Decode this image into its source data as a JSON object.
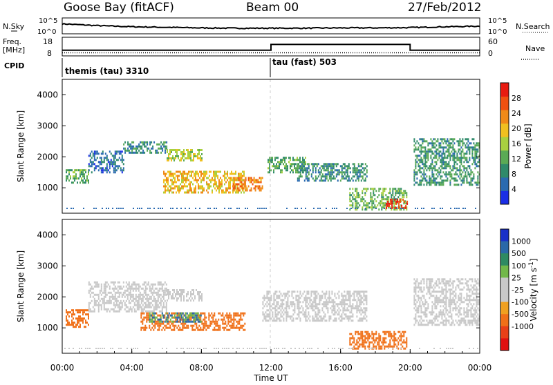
{
  "header": {
    "station": "Goose Bay (fitACF)",
    "beam": "Beam 00",
    "date": "27/Feb/2012"
  },
  "colors": {
    "power_scale": [
      "#1a2ee6",
      "#2a6ab0",
      "#2f8a6a",
      "#5aaa55",
      "#a8d040",
      "#f0c020",
      "#f08a18",
      "#f05010",
      "#e81a10"
    ],
    "velocity_scale": [
      "#1a30c8",
      "#2a68a8",
      "#2e8a62",
      "#72b84a",
      "#c8c8c8",
      "#c8c8c8",
      "#f0a020",
      "#f07018",
      "#e84018",
      "#e01010"
    ],
    "trace": "#000000",
    "mode_divider": "#000000",
    "gridline": "#cccccc"
  },
  "chart_data": [
    {
      "type": "line",
      "panel": "nsky-nsearch",
      "left_label": "N.Sky",
      "right_label": "N.Search",
      "left_ticks": [
        "10^5",
        "10^0"
      ],
      "right_ticks": [
        "10^5",
        "10^0"
      ],
      "x": [
        "00:00",
        "02:00",
        "04:00",
        "06:00",
        "08:00",
        "10:00",
        "12:00",
        "14:00",
        "16:00",
        "18:00",
        "20:00",
        "22:00",
        "24:00"
      ],
      "series": [
        {
          "name": "N.Sky",
          "values": [
            3.2,
            2.6,
            2.2,
            2.0,
            1.8,
            1.7,
            1.7,
            1.7,
            1.8,
            1.8,
            1.9,
            2.2,
            2.4
          ]
        }
      ]
    },
    {
      "type": "line",
      "panel": "freq-nave",
      "left_label": "Freq.",
      "left_unit": "[MHz]",
      "right_label": "Nave",
      "left_ticks": [
        "18",
        "8"
      ],
      "right_ticks": [
        "60",
        "0"
      ],
      "ylim_left": [
        8,
        18
      ],
      "ylim_right": [
        0,
        60
      ],
      "series": [
        {
          "name": "Freq.",
          "x": [
            "00:00",
            "12:00",
            "12:00",
            "20:00",
            "20:00",
            "24:00"
          ],
          "values": [
            10.8,
            10.8,
            14.0,
            14.0,
            10.8,
            10.8
          ]
        },
        {
          "name": "Nave",
          "x": [
            "00:00",
            "12:00",
            "24:00"
          ],
          "values": [
            8,
            8,
            8
          ]
        }
      ]
    },
    {
      "type": "table",
      "panel": "cpid",
      "label": "CPID",
      "modes": [
        {
          "name": "themis (tau) 3310",
          "start": "00:00"
        },
        {
          "name": "tau (fast) 503",
          "start": "12:00"
        }
      ]
    },
    {
      "type": "heatmap",
      "panel": "power",
      "ylabel": "Slant Range [km]",
      "yticks": [
        1000,
        2000,
        3000,
        4000
      ],
      "ylim": [
        180,
        4500
      ],
      "xlim": [
        "00:00",
        "24:00"
      ],
      "colorbar_label": "Power [dB]",
      "colorbar_ticks": [
        "4",
        "8",
        "12",
        "16",
        "20",
        "24",
        "28"
      ],
      "colorbar_range": [
        0,
        32
      ],
      "echo_regions": [
        {
          "t": [
            0.2,
            1.5
          ],
          "r": [
            1150,
            1600
          ],
          "v": 12
        },
        {
          "t": [
            1.5,
            3.5
          ],
          "r": [
            1500,
            2200
          ],
          "v": 6
        },
        {
          "t": [
            3.5,
            6.0
          ],
          "r": [
            2100,
            2500
          ],
          "v": 9
        },
        {
          "t": [
            6.0,
            8.0
          ],
          "r": [
            1900,
            2250
          ],
          "v": 17
        },
        {
          "t": [
            5.8,
            10.5
          ],
          "r": [
            850,
            1550
          ],
          "v": 20
        },
        {
          "t": [
            9.8,
            11.5
          ],
          "r": [
            900,
            1350
          ],
          "v": 24
        },
        {
          "t": [
            11.8,
            14.0
          ],
          "r": [
            1500,
            2000
          ],
          "v": 11
        },
        {
          "t": [
            13.5,
            17.5
          ],
          "r": [
            1200,
            1800
          ],
          "v": 9
        },
        {
          "t": [
            16.5,
            19.8
          ],
          "r": [
            300,
            1000
          ],
          "v": 13
        },
        {
          "t": [
            18.6,
            19.8
          ],
          "r": [
            380,
            650
          ],
          "v": 29
        },
        {
          "t": [
            20.2,
            24.0
          ],
          "r": [
            1100,
            2600
          ],
          "v": 10
        }
      ]
    },
    {
      "type": "heatmap",
      "panel": "velocity",
      "ylabel": "Slant Range [km]",
      "yticks": [
        1000,
        2000,
        3000,
        4000
      ],
      "ylim": [
        180,
        4500
      ],
      "xlabel": "Time UT",
      "xticks": [
        "00:00",
        "04:00",
        "08:00",
        "12:00",
        "16:00",
        "20:00",
        "00:00"
      ],
      "xlim": [
        "00:00",
        "24:00"
      ],
      "colorbar_label": "Velocity [m s^-1]",
      "colorbar_ticks": [
        "1000",
        "500",
        "100",
        "25",
        "-25",
        "-100",
        "-500",
        "-1000"
      ],
      "echo_regions": [
        {
          "t": [
            0.2,
            1.5
          ],
          "r": [
            1000,
            1600
          ],
          "v": -150
        },
        {
          "t": [
            1.5,
            6.0
          ],
          "r": [
            1500,
            2500
          ],
          "v": 0
        },
        {
          "t": [
            6.0,
            8.0
          ],
          "r": [
            1900,
            2250
          ],
          "v": 0
        },
        {
          "t": [
            4.5,
            10.5
          ],
          "r": [
            950,
            1500
          ],
          "v": -150
        },
        {
          "t": [
            5.0,
            8.0
          ],
          "r": [
            1200,
            1500
          ],
          "v": 100
        },
        {
          "t": [
            11.5,
            17.5
          ],
          "r": [
            1200,
            2200
          ],
          "v": 0
        },
        {
          "t": [
            16.5,
            19.8
          ],
          "r": [
            350,
            900
          ],
          "v": -300
        },
        {
          "t": [
            20.2,
            24.0
          ],
          "r": [
            1100,
            2600
          ],
          "v": 0
        }
      ]
    }
  ]
}
